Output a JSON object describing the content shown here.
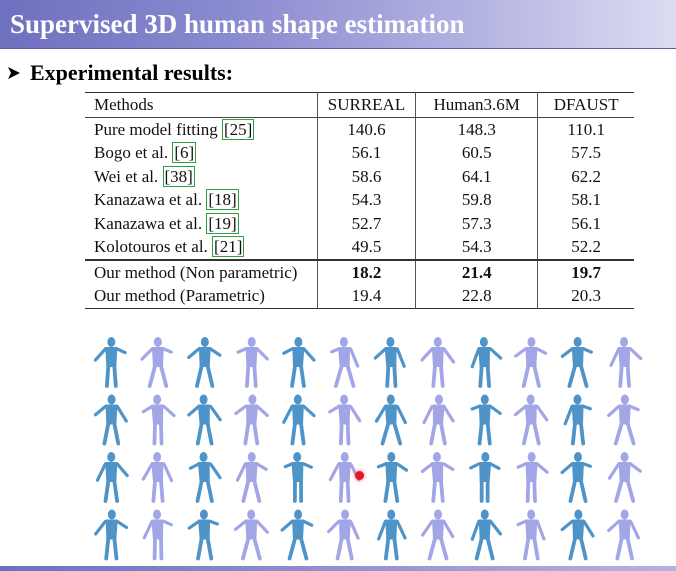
{
  "slide": {
    "title": "Supervised 3D human shape estimation",
    "bullet_icon": "arrow-bullet-icon",
    "bullet_text": "Experimental results:"
  },
  "table": {
    "headers": [
      "Methods",
      "SURREAL",
      "Human3.6M",
      "DFAUST"
    ],
    "rows": [
      {
        "method": "Pure model fitting ",
        "ref": "[25]",
        "surreal": "140.6",
        "human": "148.3",
        "dfaust": "110.1"
      },
      {
        "method": "Bogo et al. ",
        "ref": "[6]",
        "surreal": "56.1",
        "human": "60.5",
        "dfaust": "57.5"
      },
      {
        "method": "Wei et al. ",
        "ref": "[38]",
        "surreal": "58.6",
        "human": "64.1",
        "dfaust": "62.2"
      },
      {
        "method": "Kanazawa et al. ",
        "ref": "[18]",
        "surreal": "54.3",
        "human": "59.8",
        "dfaust": "58.1"
      },
      {
        "method": "Kanazawa et al. ",
        "ref": "[19]",
        "surreal": "52.7",
        "human": "57.3",
        "dfaust": "56.1"
      },
      {
        "method": "Kolotouros et al. ",
        "ref": "[21]",
        "surreal": "49.5",
        "human": "54.3",
        "dfaust": "52.2"
      },
      {
        "method": "Our method (Non parametric)",
        "ref": "",
        "surreal": "18.2",
        "human": "21.4",
        "dfaust": "19.7"
      },
      {
        "method": "Our method (Parametric)",
        "ref": "",
        "surreal": "19.4",
        "human": "22.8",
        "dfaust": "20.3"
      }
    ]
  },
  "figure": {
    "rows": 4,
    "cols": 12,
    "colors": {
      "blue": "#4f94c8",
      "lavender": "#a3a6e6"
    }
  },
  "colors": {
    "title_bar": "#7b7bc8",
    "ref_box": "#2ea043",
    "pointer": "#e0162b"
  }
}
